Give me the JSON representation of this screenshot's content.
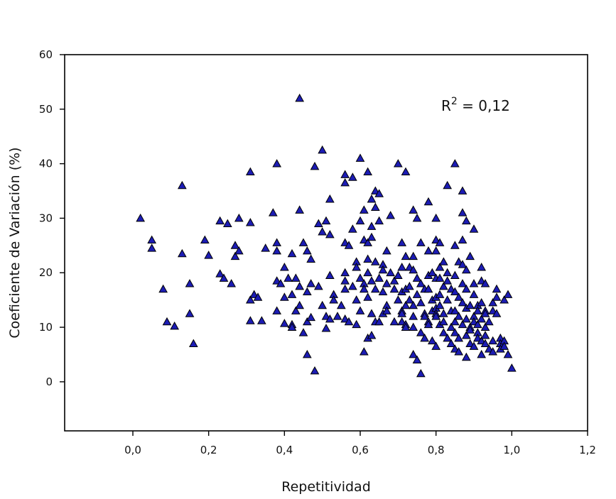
{
  "chart_data": {
    "type": "scatter",
    "xlabel": "Repetitividad",
    "ylabel": "Coeficiente de Variación (%)",
    "xlim": [
      -0.18,
      1.2
    ],
    "ylim": [
      -9,
      60
    ],
    "xticks": [
      0.0,
      0.2,
      0.4,
      0.6,
      0.8,
      1.0,
      1.2
    ],
    "xtick_labels": [
      "0,0",
      "0,2",
      "0,4",
      "0,6",
      "0,8",
      "1,0",
      "1,2"
    ],
    "yticks": [
      0,
      10,
      20,
      30,
      40,
      50,
      60
    ],
    "ytick_labels": [
      "0",
      "10",
      "20",
      "30",
      "40",
      "50",
      "60"
    ],
    "annotation": {
      "base": "R",
      "sup": "2",
      "rest": " = 0,12"
    },
    "grid": false,
    "marker": "triangle",
    "marker_color": "#1c1cb4",
    "points": [
      [
        0.02,
        30
      ],
      [
        0.05,
        26
      ],
      [
        0.05,
        24.5
      ],
      [
        0.08,
        17
      ],
      [
        0.09,
        11
      ],
      [
        0.11,
        10.2
      ],
      [
        0.13,
        36
      ],
      [
        0.13,
        23.5
      ],
      [
        0.15,
        18
      ],
      [
        0.15,
        12.5
      ],
      [
        0.16,
        7
      ],
      [
        0.19,
        26
      ],
      [
        0.2,
        23.2
      ],
      [
        0.23,
        19.8
      ],
      [
        0.23,
        29.5
      ],
      [
        0.24,
        19
      ],
      [
        0.25,
        29
      ],
      [
        0.26,
        18
      ],
      [
        0.27,
        25
      ],
      [
        0.27,
        23
      ],
      [
        0.28,
        24
      ],
      [
        0.28,
        30
      ],
      [
        0.31,
        38.5
      ],
      [
        0.31,
        29.2
      ],
      [
        0.31,
        15
      ],
      [
        0.31,
        11.2
      ],
      [
        0.32,
        16
      ],
      [
        0.33,
        15.5
      ],
      [
        0.34,
        11.2
      ],
      [
        0.35,
        24.5
      ],
      [
        0.37,
        31
      ],
      [
        0.38,
        40
      ],
      [
        0.38,
        25.5
      ],
      [
        0.38,
        24
      ],
      [
        0.38,
        18.5
      ],
      [
        0.38,
        13
      ],
      [
        0.39,
        18
      ],
      [
        0.4,
        21
      ],
      [
        0.4,
        15.5
      ],
      [
        0.4,
        10.7
      ],
      [
        0.41,
        19
      ],
      [
        0.42,
        23.5
      ],
      [
        0.42,
        16
      ],
      [
        0.42,
        10.5
      ],
      [
        0.42,
        10
      ],
      [
        0.43,
        19
      ],
      [
        0.43,
        13
      ],
      [
        0.44,
        52
      ],
      [
        0.44,
        31.5
      ],
      [
        0.44,
        17.5
      ],
      [
        0.44,
        14
      ],
      [
        0.45,
        25.5
      ],
      [
        0.45,
        9
      ],
      [
        0.46,
        24
      ],
      [
        0.46,
        16.5
      ],
      [
        0.46,
        11
      ],
      [
        0.46,
        5
      ],
      [
        0.47,
        22.5
      ],
      [
        0.47,
        18
      ],
      [
        0.47,
        11.8
      ],
      [
        0.48,
        39.5
      ],
      [
        0.48,
        2
      ],
      [
        0.49,
        17.5
      ],
      [
        0.49,
        29
      ],
      [
        0.5,
        42.5
      ],
      [
        0.5,
        27.5
      ],
      [
        0.5,
        14
      ],
      [
        0.51,
        29.5
      ],
      [
        0.51,
        12
      ],
      [
        0.51,
        9.8
      ],
      [
        0.52,
        33.5
      ],
      [
        0.52,
        27
      ],
      [
        0.52,
        19.5
      ],
      [
        0.52,
        11.5
      ],
      [
        0.53,
        16
      ],
      [
        0.53,
        15
      ],
      [
        0.54,
        12
      ],
      [
        0.55,
        14
      ],
      [
        0.56,
        38
      ],
      [
        0.56,
        36.5
      ],
      [
        0.56,
        25.5
      ],
      [
        0.56,
        20
      ],
      [
        0.56,
        18.5
      ],
      [
        0.56,
        17
      ],
      [
        0.56,
        11.5
      ],
      [
        0.57,
        25
      ],
      [
        0.57,
        11
      ],
      [
        0.58,
        37.5
      ],
      [
        0.58,
        28
      ],
      [
        0.58,
        17.5
      ],
      [
        0.59,
        22
      ],
      [
        0.59,
        21
      ],
      [
        0.59,
        15
      ],
      [
        0.59,
        10.5
      ],
      [
        0.6,
        41
      ],
      [
        0.6,
        29.5
      ],
      [
        0.6,
        19
      ],
      [
        0.6,
        13
      ],
      [
        0.61,
        31.5
      ],
      [
        0.61,
        26
      ],
      [
        0.61,
        18
      ],
      [
        0.61,
        17
      ],
      [
        0.61,
        5.5
      ],
      [
        0.62,
        38.5
      ],
      [
        0.62,
        25.5
      ],
      [
        0.62,
        22.5
      ],
      [
        0.62,
        20
      ],
      [
        0.62,
        15.5
      ],
      [
        0.62,
        8
      ],
      [
        0.63,
        33.5
      ],
      [
        0.63,
        28.5
      ],
      [
        0.63,
        26.5
      ],
      [
        0.63,
        18.5
      ],
      [
        0.63,
        12.5
      ],
      [
        0.63,
        8.5
      ],
      [
        0.64,
        35
      ],
      [
        0.64,
        32
      ],
      [
        0.64,
        22
      ],
      [
        0.64,
        17
      ],
      [
        0.64,
        11
      ],
      [
        0.65,
        34.5
      ],
      [
        0.65,
        29.5
      ],
      [
        0.65,
        19
      ],
      [
        0.65,
        11
      ],
      [
        0.66,
        21.5
      ],
      [
        0.66,
        20.5
      ],
      [
        0.66,
        16.5
      ],
      [
        0.66,
        12.5
      ],
      [
        0.67,
        24
      ],
      [
        0.67,
        18
      ],
      [
        0.67,
        14
      ],
      [
        0.67,
        13
      ],
      [
        0.68,
        30.5
      ],
      [
        0.68,
        20
      ],
      [
        0.69,
        18.5
      ],
      [
        0.69,
        17
      ],
      [
        0.69,
        11
      ],
      [
        0.7,
        40
      ],
      [
        0.7,
        19.5
      ],
      [
        0.7,
        15
      ],
      [
        0.71,
        25.5
      ],
      [
        0.71,
        21
      ],
      [
        0.71,
        16.5
      ],
      [
        0.71,
        13
      ],
      [
        0.71,
        12.5
      ],
      [
        0.71,
        11
      ],
      [
        0.72,
        38.5
      ],
      [
        0.72,
        23
      ],
      [
        0.72,
        17
      ],
      [
        0.72,
        14
      ],
      [
        0.72,
        10.5
      ],
      [
        0.72,
        10
      ],
      [
        0.73,
        21
      ],
      [
        0.73,
        17.5
      ],
      [
        0.73,
        15
      ],
      [
        0.74,
        31.5
      ],
      [
        0.74,
        23
      ],
      [
        0.74,
        20.5
      ],
      [
        0.74,
        14
      ],
      [
        0.74,
        12
      ],
      [
        0.74,
        10
      ],
      [
        0.74,
        5
      ],
      [
        0.75,
        30
      ],
      [
        0.75,
        19
      ],
      [
        0.75,
        16
      ],
      [
        0.75,
        4
      ],
      [
        0.76,
        25.5
      ],
      [
        0.76,
        18
      ],
      [
        0.76,
        14.5
      ],
      [
        0.76,
        9
      ],
      [
        0.76,
        1.5
      ],
      [
        0.77,
        17
      ],
      [
        0.77,
        12.5
      ],
      [
        0.77,
        12
      ],
      [
        0.77,
        8
      ],
      [
        0.78,
        33
      ],
      [
        0.78,
        24
      ],
      [
        0.78,
        19.5
      ],
      [
        0.78,
        17
      ],
      [
        0.78,
        11
      ],
      [
        0.78,
        10.5
      ],
      [
        0.79,
        20
      ],
      [
        0.79,
        15
      ],
      [
        0.79,
        13
      ],
      [
        0.79,
        7.5
      ],
      [
        0.8,
        30
      ],
      [
        0.8,
        26
      ],
      [
        0.8,
        24
      ],
      [
        0.8,
        19
      ],
      [
        0.8,
        15.5
      ],
      [
        0.8,
        13.5
      ],
      [
        0.8,
        12.5
      ],
      [
        0.8,
        12
      ],
      [
        0.8,
        6.5
      ],
      [
        0.81,
        25.5
      ],
      [
        0.81,
        21
      ],
      [
        0.81,
        19
      ],
      [
        0.81,
        16
      ],
      [
        0.81,
        14
      ],
      [
        0.81,
        10.5
      ],
      [
        0.82,
        22
      ],
      [
        0.82,
        17.5
      ],
      [
        0.82,
        12.5
      ],
      [
        0.82,
        11
      ],
      [
        0.82,
        9
      ],
      [
        0.83,
        36
      ],
      [
        0.83,
        20
      ],
      [
        0.83,
        18.5
      ],
      [
        0.83,
        15
      ],
      [
        0.83,
        8
      ],
      [
        0.84,
        17
      ],
      [
        0.84,
        13
      ],
      [
        0.84,
        10
      ],
      [
        0.84,
        7
      ],
      [
        0.85,
        40
      ],
      [
        0.85,
        25
      ],
      [
        0.85,
        19.5
      ],
      [
        0.85,
        16.5
      ],
      [
        0.85,
        13
      ],
      [
        0.85,
        11
      ],
      [
        0.85,
        9
      ],
      [
        0.85,
        6
      ],
      [
        0.86,
        22
      ],
      [
        0.86,
        15.5
      ],
      [
        0.86,
        12
      ],
      [
        0.86,
        8
      ],
      [
        0.86,
        5.5
      ],
      [
        0.87,
        35
      ],
      [
        0.87,
        31
      ],
      [
        0.87,
        26
      ],
      [
        0.87,
        21.5
      ],
      [
        0.87,
        18
      ],
      [
        0.87,
        14.5
      ],
      [
        0.87,
        10.5
      ],
      [
        0.88,
        29.5
      ],
      [
        0.88,
        20.5
      ],
      [
        0.88,
        17
      ],
      [
        0.88,
        13.5
      ],
      [
        0.88,
        11.5
      ],
      [
        0.88,
        8.5
      ],
      [
        0.88,
        4.5
      ],
      [
        0.89,
        23
      ],
      [
        0.89,
        14
      ],
      [
        0.89,
        10
      ],
      [
        0.89,
        9.5
      ],
      [
        0.89,
        7
      ],
      [
        0.9,
        28
      ],
      [
        0.9,
        18
      ],
      [
        0.9,
        16
      ],
      [
        0.9,
        12
      ],
      [
        0.9,
        11
      ],
      [
        0.9,
        6.5
      ],
      [
        0.91,
        14
      ],
      [
        0.91,
        13
      ],
      [
        0.91,
        10.5
      ],
      [
        0.91,
        9
      ],
      [
        0.91,
        8
      ],
      [
        0.92,
        21
      ],
      [
        0.92,
        18.5
      ],
      [
        0.92,
        14.5
      ],
      [
        0.92,
        11.5
      ],
      [
        0.92,
        7.5
      ],
      [
        0.92,
        5
      ],
      [
        0.93,
        18
      ],
      [
        0.93,
        13
      ],
      [
        0.93,
        12.5
      ],
      [
        0.93,
        10
      ],
      [
        0.93,
        8.5
      ],
      [
        0.93,
        7
      ],
      [
        0.94,
        11
      ],
      [
        0.94,
        6
      ],
      [
        0.95,
        14.5
      ],
      [
        0.95,
        13
      ],
      [
        0.95,
        7.5
      ],
      [
        0.95,
        5.5
      ],
      [
        0.96,
        17
      ],
      [
        0.96,
        15.5
      ],
      [
        0.96,
        12.5
      ],
      [
        0.97,
        8
      ],
      [
        0.97,
        7
      ],
      [
        0.97,
        6
      ],
      [
        0.98,
        15
      ],
      [
        0.98,
        7.5
      ],
      [
        0.98,
        6.5
      ],
      [
        0.99,
        16
      ],
      [
        0.99,
        5
      ],
      [
        1.0,
        2.5
      ]
    ]
  }
}
